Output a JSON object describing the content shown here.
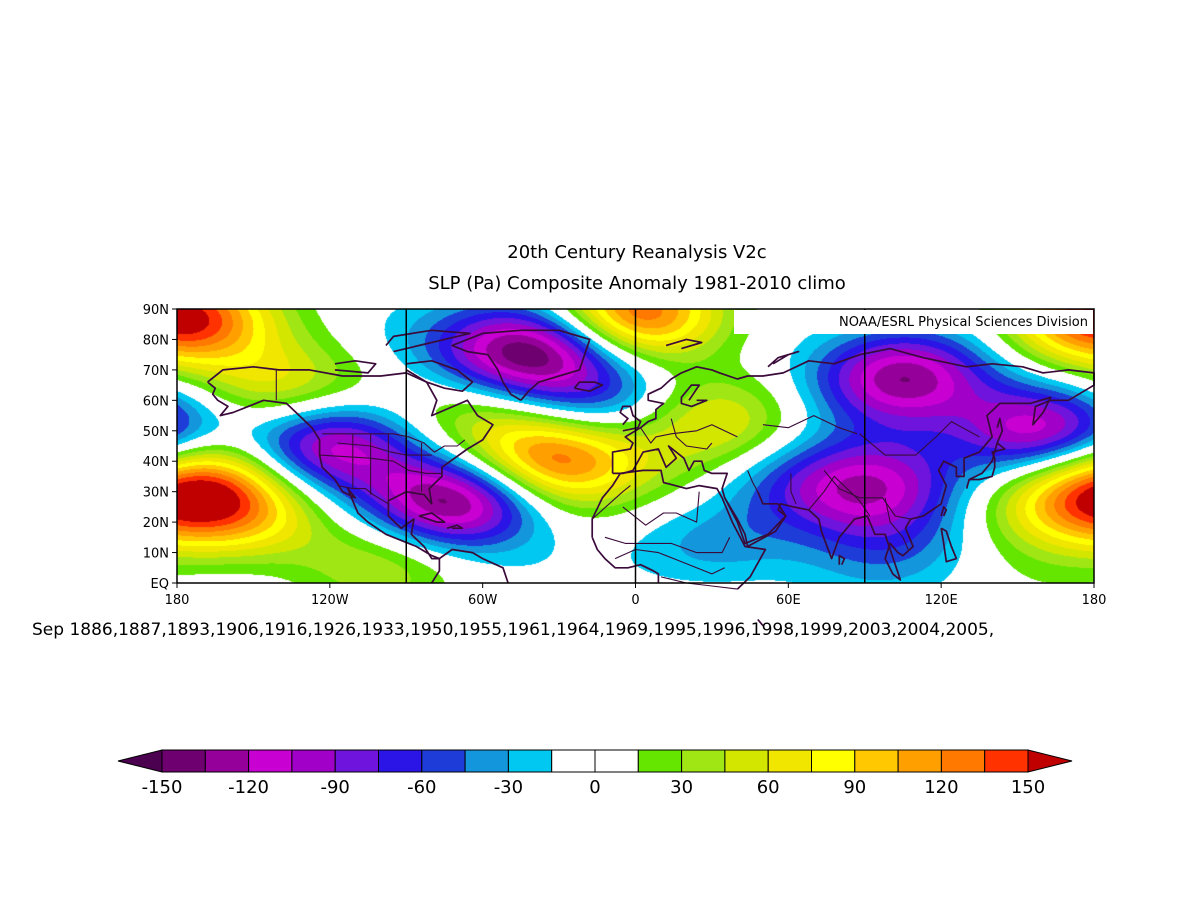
{
  "title_line1": "20th Century Reanalysis V2c",
  "title_line2": "SLP (Pa) Composite Anomaly 1981-2010 climo",
  "credit": "NOAA/ESRL Physical Sciences Division",
  "dates_text": "Sep 1886,1887,1893,1906,1916,1926,1933,1950,1955,1961,1964,1969,1995,1996,1998,1999,2003,2004,2005,",
  "map": {
    "lon_range": [
      -180,
      180
    ],
    "lat_range": [
      0,
      90
    ],
    "lat_labels": [
      "90N",
      "80N",
      "70N",
      "60N",
      "50N",
      "40N",
      "30N",
      "20N",
      "10N",
      "EQ"
    ],
    "lon_labels": [
      "180",
      "120W",
      "60W",
      "0",
      "60E",
      "120E",
      "180"
    ],
    "reference_meridians": [
      -90,
      0,
      90
    ],
    "field": "sea level pressure anomaly (Pa)",
    "anomaly_centers": [
      {
        "lon": 180,
        "lat": 87,
        "value": 160
      },
      {
        "lon": 0,
        "lat": 88,
        "value": 150
      },
      {
        "lon": -172,
        "lat": 33,
        "value": 110
      },
      {
        "lon": -155,
        "lat": 22,
        "value": 70
      },
      {
        "lon": -140,
        "lat": 64,
        "value": 70
      },
      {
        "lon": -100,
        "lat": 8,
        "value": 40
      },
      {
        "lon": -27,
        "lat": 41,
        "value": 105
      },
      {
        "lon": -45,
        "lat": 42,
        "value": 50
      },
      {
        "lon": 30,
        "lat": 52,
        "value": 60
      },
      {
        "lon": -60,
        "lat": 58,
        "value": 40
      },
      {
        "lon": 165,
        "lat": 25,
        "value": 70
      },
      {
        "lon": 35,
        "lat": 30,
        "value": 30
      },
      {
        "lon": -70,
        "lat": 27,
        "value": -150
      },
      {
        "lon": -120,
        "lat": 45,
        "value": -120
      },
      {
        "lon": -55,
        "lat": 75,
        "value": -60
      },
      {
        "lon": -35,
        "lat": 77,
        "value": -120
      },
      {
        "lon": -15,
        "lat": 58,
        "value": -60
      },
      {
        "lon": 105,
        "lat": 68,
        "value": -130
      },
      {
        "lon": 160,
        "lat": 50,
        "value": -130
      },
      {
        "lon": 93,
        "lat": 32,
        "value": -110
      },
      {
        "lon": 55,
        "lat": 32,
        "value": -50
      },
      {
        "lon": 30,
        "lat": 12,
        "value": -40
      },
      {
        "lon": 100,
        "lat": 14,
        "value": -40
      }
    ]
  },
  "colorbar": {
    "levels": [
      -150,
      -135,
      -120,
      -105,
      -90,
      -75,
      -60,
      -45,
      -30,
      -15,
      0,
      15,
      30,
      45,
      60,
      75,
      90,
      105,
      120,
      135,
      150
    ],
    "labels": [
      "-150",
      "-120",
      "-90",
      "-60",
      "-30",
      "0",
      "30",
      "60",
      "90",
      "120",
      "150"
    ],
    "label_values": [
      -150,
      -120,
      -90,
      -60,
      -30,
      0,
      30,
      60,
      90,
      120,
      150
    ],
    "under_color": "#4b0050",
    "over_color": "#c00000",
    "colors": [
      "#6e0070",
      "#96009a",
      "#c800d2",
      "#a000c8",
      "#6e14dc",
      "#2a14e6",
      "#1e3cd8",
      "#1496dc",
      "#00c8f0",
      "#ffffff",
      "#ffffff",
      "#64e600",
      "#a0e614",
      "#d2e600",
      "#f0e600",
      "#ffff00",
      "#ffc800",
      "#ffa000",
      "#ff7800",
      "#ff3200"
    ]
  }
}
